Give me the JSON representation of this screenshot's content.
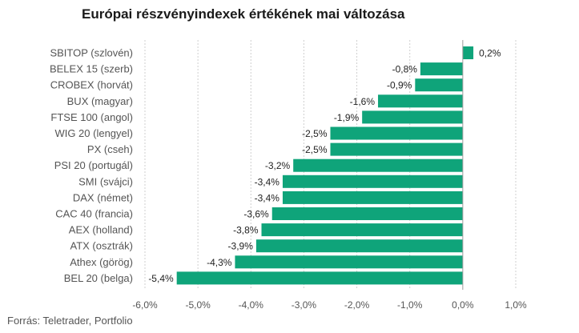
{
  "title": "Európai részvényindexek értékének mai változása",
  "source": "Forrás: Teletrader, Portfolio",
  "colors": {
    "bar": "#0fa47a",
    "grid": "#cfcfcf",
    "zero_line": "#9a9a9a"
  },
  "chart_data": {
    "type": "bar",
    "orientation": "horizontal",
    "title": "Európai részvényindexek értékének mai változása",
    "categories": [
      "SBITOP (szlovén)",
      "BELEX 15 (szerb)",
      "CROBEX (horvát)",
      "BUX (magyar)",
      "FTSE 100 (angol)",
      "WIG 20 (lengyel)",
      "PX (cseh)",
      "PSI 20 (portugál)",
      "SMI (svájci)",
      "DAX (német)",
      "CAC 40 (francia)",
      "AEX (holland)",
      "ATX (osztrák)",
      "Athex (görög)",
      "BEL 20 (belga)"
    ],
    "values": [
      0.2,
      -0.8,
      -0.9,
      -1.6,
      -1.9,
      -2.5,
      -2.5,
      -3.2,
      -3.4,
      -3.4,
      -3.6,
      -3.8,
      -3.9,
      -4.3,
      -5.4
    ],
    "value_labels": [
      "0,2%",
      "-0,8%",
      "-0,9%",
      "-1,6%",
      "-1,9%",
      "-2,5%",
      "-2,5%",
      "-3,2%",
      "-3,4%",
      "-3,4%",
      "-3,6%",
      "-3,8%",
      "-3,9%",
      "-4,3%",
      "-5,4%"
    ],
    "xlim": [
      -6.0,
      1.0
    ],
    "ticks": [
      -6,
      -5,
      -4,
      -3,
      -2,
      -1,
      0,
      1
    ],
    "tick_labels": [
      "-6,0%",
      "-5,0%",
      "-4,0%",
      "-3,0%",
      "-2,0%",
      "-1,0%",
      "0,0%",
      "1,0%"
    ],
    "grid": true,
    "legend": "none"
  }
}
